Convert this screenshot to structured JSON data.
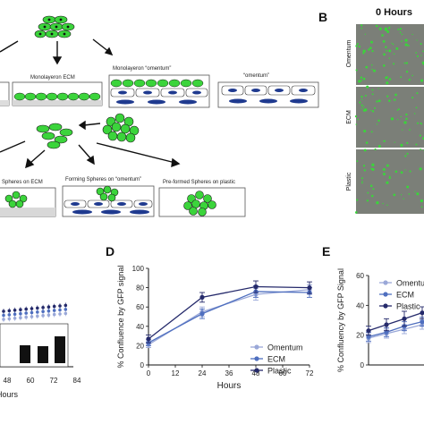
{
  "panel_letters": {
    "b": "B",
    "d": "D",
    "e": "E"
  },
  "schematic": {
    "monolayer_ecm": "Monolayeron ECM",
    "monolayer_omentum": "Monolayeron “omentum”",
    "omentum": "“omentum”",
    "spheres_ecm": "Spheres on ECM",
    "forming_spheres_omentum": "Forming Spheres on “omentum”",
    "preformed_spheres_plastic": "Pre-formed Spheres on plastic"
  },
  "micrographs": {
    "header": "0 Hours",
    "rows": [
      "Omentum",
      "ECM",
      "Plastic"
    ]
  },
  "colors": {
    "omentum": "#9aa8d8",
    "ecm": "#4f6fbf",
    "plastic": "#252a6b",
    "cell_green": "#3bd43b",
    "cell_blue": "#1f3a8f",
    "micrograph_bg": "#7b7f78"
  },
  "chart_data": [
    {
      "id": "panel-left-partial",
      "type": "scatter",
      "x_ticks": [
        "48",
        "60",
        "72",
        "84"
      ],
      "xlabel": "Hours",
      "note": "panel cropped at left edge"
    },
    {
      "id": "panel-D",
      "type": "line",
      "title": "",
      "xlabel": "Hours",
      "ylabel": "% Confluence by GFP signal",
      "x": [
        0,
        24,
        48,
        72
      ],
      "xlim": [
        0,
        72
      ],
      "ylim": [
        0,
        100
      ],
      "x_ticks": [
        "0",
        "12",
        "24",
        "36",
        "48",
        "60",
        "72"
      ],
      "y_ticks": [
        "0",
        "20",
        "40",
        "60",
        "80",
        "100"
      ],
      "grid": false,
      "legend": "bottom-right",
      "series": [
        {
          "name": "Omentum",
          "values": [
            21,
            55,
            73,
            78
          ],
          "errors": [
            3,
            5,
            6,
            5
          ]
        },
        {
          "name": "ECM",
          "values": [
            23,
            53,
            76,
            75
          ],
          "errors": [
            3,
            5,
            6,
            5
          ]
        },
        {
          "name": "Plastic",
          "values": [
            27,
            70,
            81,
            80
          ],
          "errors": [
            4,
            5,
            6,
            6
          ]
        }
      ]
    },
    {
      "id": "panel-E",
      "type": "line",
      "xlabel": "",
      "ylabel": "% Confluency by GFP Signal",
      "x": [
        0,
        12,
        24,
        36
      ],
      "ylim": [
        0,
        60
      ],
      "y_ticks": [
        "0",
        "20",
        "40",
        "60"
      ],
      "legend": "top-right",
      "series": [
        {
          "name": "Omentum",
          "values": [
            18,
            21,
            24,
            27
          ],
          "errors": [
            3,
            3,
            3,
            3
          ]
        },
        {
          "name": "ECM",
          "values": [
            19,
            22,
            26,
            29
          ],
          "errors": [
            3,
            3,
            3,
            3
          ]
        },
        {
          "name": "Plastic",
          "values": [
            23,
            27,
            31,
            35
          ],
          "errors": [
            3,
            4,
            5,
            4
          ]
        }
      ]
    }
  ]
}
